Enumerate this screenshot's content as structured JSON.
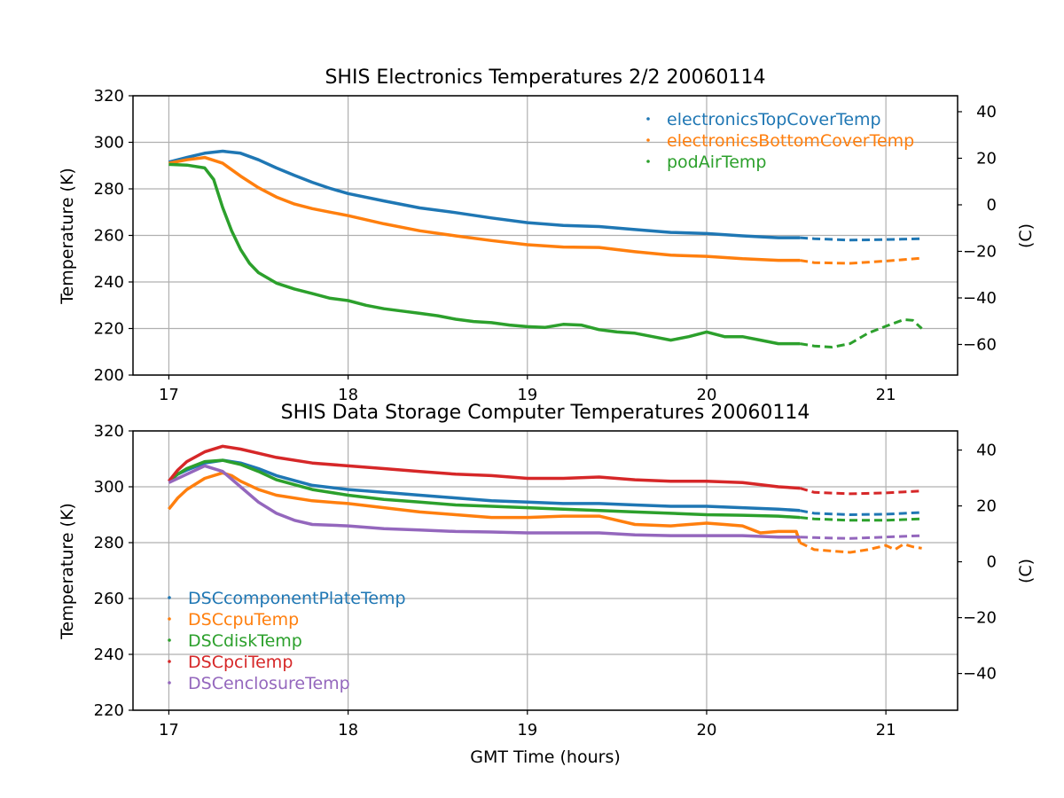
{
  "figure": {
    "xlabel": "GMT Time (hours)"
  },
  "chart_data": [
    {
      "type": "line",
      "title": "SHIS Electronics Temperatures 2/2 20060114",
      "ylabel": "Temperature (K)",
      "y2label": "(C)",
      "xlim": [
        16.8,
        21.4
      ],
      "ylim": [
        200,
        320
      ],
      "y2lim": [
        -73.15,
        46.85
      ],
      "xticks": [
        "17",
        "18",
        "19",
        "20",
        "21"
      ],
      "yticks": [
        "200",
        "220",
        "240",
        "260",
        "280",
        "300",
        "320"
      ],
      "y2ticks": [
        "−60",
        "−40",
        "−20",
        "0",
        "20",
        "40"
      ],
      "grid": true,
      "legend_loc": "top-right",
      "gap_start": 20.52,
      "series": [
        {
          "name": "electronicsTopCoverTemp",
          "color": "#1f77b4",
          "x": [
            17.0,
            17.1,
            17.2,
            17.3,
            17.4,
            17.5,
            17.6,
            17.7,
            17.8,
            17.9,
            18.0,
            18.2,
            18.4,
            18.6,
            18.8,
            19.0,
            19.2,
            19.4,
            19.6,
            19.8,
            20.0,
            20.2,
            20.4,
            20.52,
            20.6,
            20.8,
            21.0,
            21.2
          ],
          "y": [
            291.5,
            293.5,
            295.3,
            296.2,
            295.3,
            292.5,
            289.0,
            285.8,
            282.8,
            280.2,
            278.0,
            274.8,
            271.8,
            269.8,
            267.5,
            265.5,
            264.3,
            263.8,
            262.5,
            261.3,
            260.8,
            259.8,
            259.0,
            259.0,
            258.6,
            258.0,
            258.2,
            258.6
          ]
        },
        {
          "name": "electronicsBottomCoverTemp",
          "color": "#ff7f0e",
          "x": [
            17.0,
            17.1,
            17.2,
            17.3,
            17.4,
            17.5,
            17.6,
            17.7,
            17.8,
            17.9,
            18.0,
            18.2,
            18.4,
            18.6,
            18.8,
            19.0,
            19.2,
            19.4,
            19.6,
            19.8,
            20.0,
            20.2,
            20.4,
            20.52,
            20.6,
            20.8,
            21.0,
            21.2
          ],
          "y": [
            291.0,
            292.5,
            293.5,
            291.0,
            285.5,
            280.5,
            276.5,
            273.5,
            271.5,
            270.0,
            268.5,
            265.0,
            262.0,
            259.8,
            257.8,
            256.0,
            255.0,
            254.8,
            253.0,
            251.5,
            251.0,
            250.0,
            249.3,
            249.3,
            248.3,
            248.0,
            249.0,
            250.2
          ]
        },
        {
          "name": "podAirTemp",
          "color": "#2ca02c",
          "x": [
            17.0,
            17.1,
            17.2,
            17.25,
            17.3,
            17.35,
            17.4,
            17.45,
            17.5,
            17.6,
            17.7,
            17.8,
            17.9,
            18.0,
            18.1,
            18.2,
            18.3,
            18.4,
            18.5,
            18.6,
            18.7,
            18.8,
            18.9,
            19.0,
            19.1,
            19.2,
            19.3,
            19.4,
            19.5,
            19.6,
            19.7,
            19.8,
            19.9,
            20.0,
            20.1,
            20.2,
            20.3,
            20.4,
            20.52,
            20.6,
            20.7,
            20.8,
            20.9,
            21.0,
            21.1,
            21.15,
            21.2
          ],
          "y": [
            290.5,
            290.2,
            289.0,
            284.0,
            272.0,
            262.0,
            254.0,
            248.0,
            244.0,
            239.5,
            237.0,
            235.0,
            233.0,
            232.0,
            230.0,
            228.5,
            227.5,
            226.5,
            225.5,
            224.0,
            223.0,
            222.5,
            221.5,
            220.8,
            220.5,
            221.8,
            221.5,
            219.5,
            218.5,
            218.0,
            216.5,
            215.0,
            216.5,
            218.5,
            216.5,
            216.5,
            215.0,
            213.5,
            213.5,
            212.5,
            212.0,
            213.5,
            218.0,
            221.0,
            223.8,
            223.5,
            220.0
          ]
        }
      ]
    },
    {
      "type": "line",
      "title": "SHIS Data Storage Computer Temperatures 20060114",
      "ylabel": "Temperature (K)",
      "y2label": "(C)",
      "xlabel": "GMT Time (hours)",
      "xlim": [
        16.8,
        21.4
      ],
      "ylim": [
        220,
        320
      ],
      "y2lim": [
        -53.15,
        46.85
      ],
      "xticks": [
        "17",
        "18",
        "19",
        "20",
        "21"
      ],
      "yticks": [
        "220",
        "240",
        "260",
        "280",
        "300",
        "320"
      ],
      "y2ticks": [
        "−40",
        "−20",
        "0",
        "20",
        "40"
      ],
      "grid": true,
      "legend_loc": "lower-left",
      "gap_start": 20.52,
      "series": [
        {
          "name": "DSCcomponentPlateTemp",
          "color": "#1f77b4",
          "x": [
            17.0,
            17.05,
            17.1,
            17.2,
            17.3,
            17.4,
            17.5,
            17.6,
            17.8,
            18.0,
            18.2,
            18.4,
            18.6,
            18.8,
            19.0,
            19.2,
            19.4,
            19.6,
            19.8,
            20.0,
            20.2,
            20.4,
            20.52,
            20.6,
            20.8,
            21.0,
            21.2
          ],
          "y": [
            302.0,
            304.5,
            306.0,
            308.5,
            309.5,
            308.5,
            306.5,
            304.0,
            300.5,
            299.0,
            298.0,
            297.0,
            296.0,
            295.0,
            294.5,
            294.0,
            294.0,
            293.5,
            293.0,
            293.0,
            292.5,
            292.0,
            291.5,
            290.5,
            290.0,
            290.2,
            290.8
          ]
        },
        {
          "name": "DSCcpuTemp",
          "color": "#ff7f0e",
          "x": [
            17.0,
            17.05,
            17.1,
            17.2,
            17.3,
            17.35,
            17.4,
            17.5,
            17.6,
            17.8,
            18.0,
            18.2,
            18.4,
            18.6,
            18.8,
            19.0,
            19.2,
            19.4,
            19.6,
            19.8,
            20.0,
            20.1,
            20.2,
            20.3,
            20.4,
            20.5,
            20.52,
            20.6,
            20.8,
            20.9,
            21.0,
            21.05,
            21.1,
            21.15,
            21.2
          ],
          "y": [
            292.0,
            296.0,
            299.0,
            303.0,
            305.0,
            304.0,
            302.0,
            299.0,
            297.0,
            295.0,
            294.0,
            292.5,
            291.0,
            290.0,
            289.0,
            289.0,
            289.5,
            289.5,
            286.5,
            286.0,
            287.0,
            286.5,
            286.0,
            283.5,
            284.0,
            284.0,
            280.0,
            277.5,
            276.5,
            277.5,
            279.0,
            277.5,
            279.5,
            278.5,
            278.0
          ]
        },
        {
          "name": "DSCdiskTemp",
          "color": "#2ca02c",
          "x": [
            17.0,
            17.05,
            17.1,
            17.2,
            17.3,
            17.4,
            17.5,
            17.6,
            17.8,
            18.0,
            18.2,
            18.4,
            18.6,
            18.8,
            19.0,
            19.2,
            19.4,
            19.6,
            19.8,
            20.0,
            20.2,
            20.4,
            20.52,
            20.6,
            20.8,
            21.0,
            21.2
          ],
          "y": [
            302.0,
            304.5,
            306.5,
            309.0,
            309.5,
            308.0,
            305.5,
            302.5,
            299.0,
            297.0,
            295.5,
            294.5,
            293.5,
            293.0,
            292.5,
            292.0,
            291.5,
            291.0,
            290.5,
            290.0,
            289.8,
            289.5,
            289.0,
            288.5,
            288.0,
            288.0,
            288.5
          ]
        },
        {
          "name": "DSCpciTemp",
          "color": "#d62728",
          "x": [
            17.0,
            17.05,
            17.1,
            17.2,
            17.3,
            17.4,
            17.5,
            17.6,
            17.8,
            18.0,
            18.2,
            18.4,
            18.6,
            18.8,
            19.0,
            19.2,
            19.4,
            19.6,
            19.8,
            20.0,
            20.2,
            20.4,
            20.52,
            20.6,
            20.8,
            21.0,
            21.2
          ],
          "y": [
            302.0,
            306.0,
            309.0,
            312.5,
            314.5,
            313.5,
            312.0,
            310.5,
            308.5,
            307.5,
            306.5,
            305.5,
            304.5,
            304.0,
            303.0,
            303.0,
            303.5,
            302.5,
            302.0,
            302.0,
            301.5,
            300.0,
            299.5,
            298.0,
            297.5,
            297.8,
            298.5
          ]
        },
        {
          "name": "DSCenclosureTemp",
          "color": "#9467bd",
          "x": [
            17.0,
            17.1,
            17.2,
            17.3,
            17.4,
            17.5,
            17.6,
            17.7,
            17.8,
            18.0,
            18.2,
            18.4,
            18.6,
            18.8,
            19.0,
            19.2,
            19.4,
            19.6,
            19.8,
            20.0,
            20.2,
            20.4,
            20.52,
            20.6,
            20.8,
            21.0,
            21.2
          ],
          "y": [
            301.5,
            304.5,
            307.5,
            305.5,
            300.0,
            294.5,
            290.5,
            288.0,
            286.5,
            286.0,
            285.0,
            284.5,
            284.0,
            283.8,
            283.5,
            283.5,
            283.5,
            282.8,
            282.5,
            282.5,
            282.5,
            282.0,
            282.0,
            281.8,
            281.5,
            282.0,
            282.5
          ]
        }
      ]
    }
  ]
}
